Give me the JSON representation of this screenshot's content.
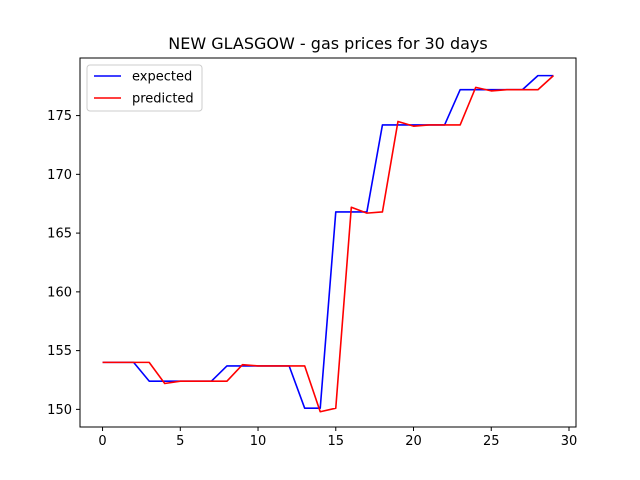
{
  "chart_data": {
    "type": "line",
    "title": "NEW GLASGOW - gas prices for 30 days",
    "xlabel": "",
    "ylabel": "",
    "xlim": [
      -1.45,
      30.45
    ],
    "ylim": [
      148.5,
      179.9
    ],
    "xticks": [
      0,
      5,
      10,
      15,
      20,
      25,
      30
    ],
    "yticks": [
      150,
      155,
      160,
      165,
      170,
      175
    ],
    "grid": false,
    "legend_position": "top-left",
    "x": [
      0,
      1,
      2,
      3,
      4,
      5,
      6,
      7,
      8,
      9,
      10,
      11,
      12,
      13,
      14,
      15,
      16,
      17,
      18,
      19,
      20,
      21,
      22,
      23,
      24,
      25,
      26,
      27,
      28,
      29
    ],
    "series": [
      {
        "name": "expected",
        "color": "#0000ff",
        "values": [
          154.0,
          154.0,
          154.0,
          152.4,
          152.4,
          152.4,
          152.4,
          152.4,
          153.7,
          153.7,
          153.7,
          153.7,
          153.7,
          150.1,
          150.1,
          166.8,
          166.8,
          166.8,
          174.2,
          174.2,
          174.2,
          174.2,
          174.2,
          177.2,
          177.2,
          177.2,
          177.2,
          177.2,
          178.4,
          178.4
        ]
      },
      {
        "name": "predicted",
        "color": "#ff0000",
        "values": [
          154.0,
          154.0,
          154.0,
          154.0,
          152.2,
          152.4,
          152.4,
          152.4,
          152.4,
          153.8,
          153.7,
          153.7,
          153.7,
          153.7,
          149.8,
          150.1,
          167.2,
          166.7,
          166.8,
          174.5,
          174.1,
          174.2,
          174.2,
          174.2,
          177.4,
          177.1,
          177.2,
          177.2,
          177.2,
          178.4
        ]
      }
    ]
  }
}
